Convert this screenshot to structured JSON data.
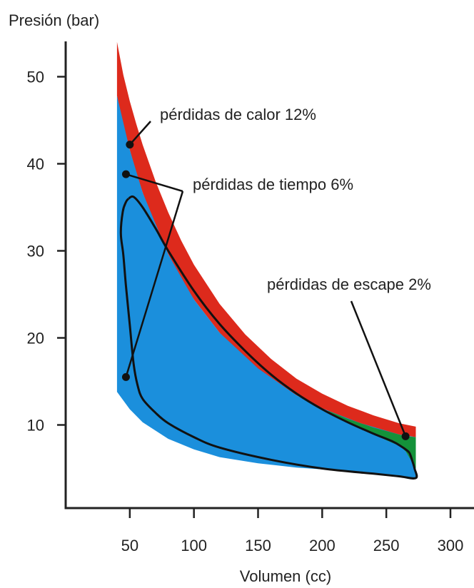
{
  "chart_data": {
    "type": "area",
    "title": "",
    "xlabel": "Volumen (cc)",
    "ylabel": "Presión (bar)",
    "xlim": [
      0,
      300
    ],
    "ylim": [
      0,
      55
    ],
    "x_ticks": [
      50,
      100,
      150,
      200,
      250,
      300
    ],
    "y_ticks": [
      10,
      20,
      30,
      40,
      50
    ],
    "grid": false,
    "colors": {
      "heat_loss": "#dd2a1c",
      "time_loss": "#1b8fdc",
      "exhaust_loss": "#14923a",
      "actual_cycle": "#111111",
      "axes": "#222222"
    },
    "series": [
      {
        "name": "pérdidas de calor 12%",
        "x": [
          40,
          45,
          50,
          55,
          60,
          70,
          80,
          90,
          100,
          120,
          140,
          160,
          180,
          200,
          220,
          240,
          260,
          273
        ],
        "upper": [
          54,
          50.2,
          47.2,
          44.6,
          42.2,
          38.0,
          34.4,
          31.2,
          28.4,
          23.9,
          20.4,
          17.6,
          15.3,
          13.6,
          12.2,
          11.1,
          10.2,
          9.8
        ],
        "lower": [
          47.8,
          44.5,
          41.6,
          39.0,
          36.7,
          32.8,
          29.6,
          26.8,
          24.4,
          20.6,
          17.6,
          15.3,
          13.4,
          11.9,
          10.7,
          9.7,
          8.9,
          8.6
        ]
      },
      {
        "name": "pérdidas de tiempo 6%",
        "x": [
          40,
          50,
          60,
          80,
          100,
          120,
          150,
          180,
          200,
          230,
          260,
          273
        ],
        "upper": [
          47.8,
          41.6,
          36.7,
          29.6,
          24.4,
          20.6,
          16.5,
          13.4,
          11.9,
          10.2,
          8.9,
          8.6
        ],
        "lower": [
          13.8,
          11.8,
          10.3,
          8.4,
          7.2,
          6.3,
          5.6,
          5.1,
          4.9,
          4.6,
          4.2,
          3.9
        ]
      },
      {
        "name": "pérdidas de escape 2%",
        "x": [
          205,
          220,
          240,
          260,
          265,
          273
        ],
        "upper": [
          11.6,
          10.7,
          9.7,
          8.9,
          8.7,
          8.6
        ],
        "lower": [
          11.4,
          10.2,
          8.9,
          7.6,
          7.0,
          5.0
        ]
      },
      {
        "name": "",
        "kind": "actual_cycle",
        "x": [
          49,
          53,
          60,
          70,
          80,
          100,
          120,
          140,
          160,
          180,
          200,
          220,
          240,
          255,
          262,
          265,
          268,
          270,
          272,
          273,
          260,
          240,
          200,
          160,
          120,
          100,
          80,
          70,
          60,
          56,
          53,
          50,
          47,
          45,
          43,
          44.5,
          47,
          49
        ],
        "y": [
          36.0,
          36.2,
          35.0,
          32.6,
          30.0,
          25.4,
          21.6,
          18.5,
          15.8,
          13.6,
          11.8,
          10.3,
          9.0,
          8.1,
          7.5,
          7.2,
          6.8,
          6.0,
          5.0,
          3.9,
          4.1,
          4.4,
          5.0,
          6.0,
          7.4,
          8.6,
          10.2,
          11.4,
          13.0,
          14.6,
          17.0,
          21.5,
          26.0,
          29.5,
          32.0,
          34.5,
          35.6,
          36.0
        ]
      }
    ],
    "annotations": [
      {
        "text": "pérdidas de calor 12%",
        "points": [
          [
            50,
            42.2
          ]
        ]
      },
      {
        "text": "pérdidas de tiempo 6%",
        "points": [
          [
            47,
            38.8
          ],
          [
            47,
            15.5
          ]
        ]
      },
      {
        "text": "pérdidas de escape 2%",
        "points": [
          [
            265,
            8.7
          ]
        ]
      }
    ]
  }
}
